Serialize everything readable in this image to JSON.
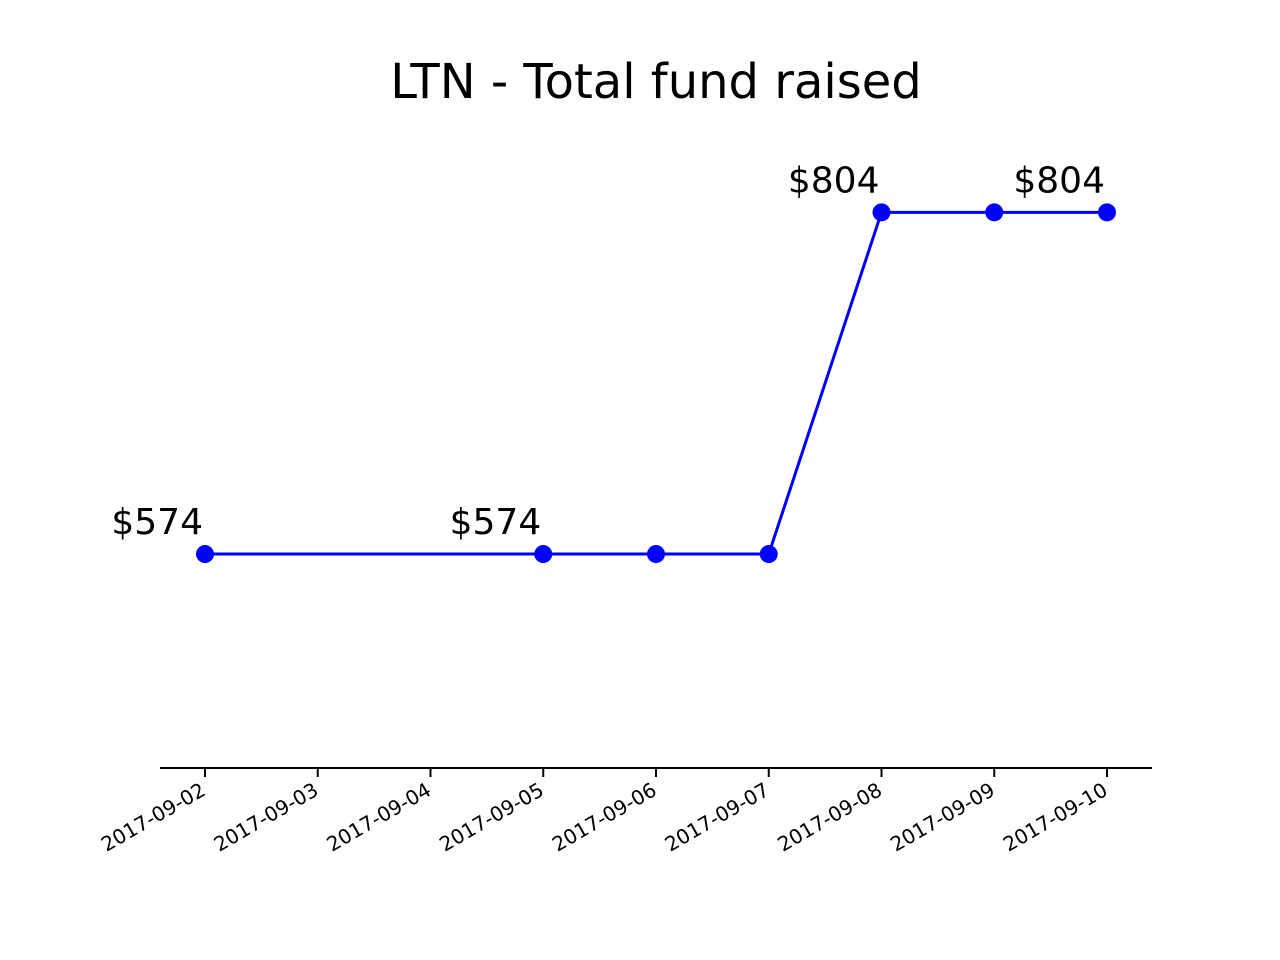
{
  "chart_data": {
    "type": "line",
    "title": "LTN - Total fund raised",
    "xlabel": "",
    "ylabel": "",
    "categories": [
      "2017-09-02",
      "2017-09-03",
      "2017-09-04",
      "2017-09-05",
      "2017-09-06",
      "2017-09-07",
      "2017-09-08",
      "2017-09-09",
      "2017-09-10"
    ],
    "series": [
      {
        "color": "#0000ff",
        "points": [
          {
            "x": "2017-09-02",
            "y": 574
          },
          {
            "x": "2017-09-05",
            "y": 574
          },
          {
            "x": "2017-09-06",
            "y": 574
          },
          {
            "x": "2017-09-07",
            "y": 574
          },
          {
            "x": "2017-09-08",
            "y": 804
          },
          {
            "x": "2017-09-09",
            "y": 804
          },
          {
            "x": "2017-09-10",
            "y": 804
          }
        ]
      }
    ],
    "annotations": [
      {
        "x": "2017-09-02",
        "y": 574,
        "text": "$574"
      },
      {
        "x": "2017-09-05",
        "y": 574,
        "text": "$574"
      },
      {
        "x": "2017-09-08",
        "y": 804,
        "text": "$804"
      },
      {
        "x": "2017-09-10",
        "y": 804,
        "text": "$804"
      }
    ],
    "xlim": [
      "2017-09-02",
      "2017-09-10"
    ],
    "ylim": [
      430,
      850
    ],
    "grid": false,
    "legend": "none"
  }
}
